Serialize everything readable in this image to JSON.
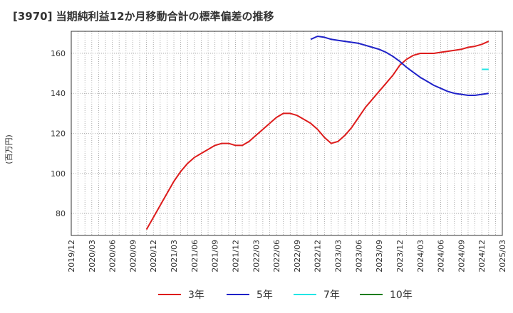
{
  "chart_data": {
    "type": "line",
    "title": "[3970]  当期純利益12か月移動合計の標準偏差の推移",
    "ylabel": "(百万円)",
    "xlabel": "",
    "ylim": [
      69,
      171
    ],
    "yticks": [
      80,
      100,
      120,
      140,
      160
    ],
    "xlim": [
      "2019/12",
      "2025/03"
    ],
    "xticks": [
      "2019/12",
      "2020/03",
      "2020/06",
      "2020/09",
      "2020/12",
      "2021/03",
      "2021/06",
      "2021/09",
      "2021/12",
      "2022/03",
      "2022/06",
      "2022/09",
      "2022/12",
      "2023/03",
      "2023/06",
      "2023/09",
      "2023/12",
      "2024/03",
      "2024/06",
      "2024/09",
      "2024/12",
      "2025/03"
    ],
    "grid": true,
    "legend_position": "bottom",
    "series": [
      {
        "name": "3年",
        "color": "#dd1c1c",
        "points": [
          [
            "2020/11",
            72
          ],
          [
            "2020/12",
            78
          ],
          [
            "2021/01",
            84
          ],
          [
            "2021/02",
            90
          ],
          [
            "2021/03",
            96
          ],
          [
            "2021/04",
            101
          ],
          [
            "2021/05",
            105
          ],
          [
            "2021/06",
            108
          ],
          [
            "2021/07",
            110
          ],
          [
            "2021/08",
            112
          ],
          [
            "2021/09",
            114
          ],
          [
            "2021/10",
            115
          ],
          [
            "2021/11",
            115
          ],
          [
            "2021/12",
            114
          ],
          [
            "2022/01",
            114
          ],
          [
            "2022/02",
            116
          ],
          [
            "2022/03",
            119
          ],
          [
            "2022/04",
            122
          ],
          [
            "2022/05",
            125
          ],
          [
            "2022/06",
            128
          ],
          [
            "2022/07",
            130
          ],
          [
            "2022/08",
            130
          ],
          [
            "2022/09",
            129
          ],
          [
            "2022/10",
            127
          ],
          [
            "2022/11",
            125
          ],
          [
            "2022/12",
            122
          ],
          [
            "2023/01",
            118
          ],
          [
            "2023/02",
            115
          ],
          [
            "2023/03",
            116
          ],
          [
            "2023/04",
            119
          ],
          [
            "2023/05",
            123
          ],
          [
            "2023/06",
            128
          ],
          [
            "2023/07",
            133
          ],
          [
            "2023/08",
            137
          ],
          [
            "2023/09",
            141
          ],
          [
            "2023/10",
            145
          ],
          [
            "2023/11",
            149
          ],
          [
            "2023/12",
            154
          ],
          [
            "2024/01",
            157
          ],
          [
            "2024/02",
            159
          ],
          [
            "2024/03",
            160
          ],
          [
            "2024/04",
            160
          ],
          [
            "2024/05",
            160
          ],
          [
            "2024/06",
            160.5
          ],
          [
            "2024/07",
            161
          ],
          [
            "2024/08",
            161.5
          ],
          [
            "2024/09",
            162
          ],
          [
            "2024/10",
            163
          ],
          [
            "2024/11",
            163.5
          ],
          [
            "2024/12",
            164.5
          ],
          [
            "2025/01",
            166
          ]
        ]
      },
      {
        "name": "5年",
        "color": "#1f22c8",
        "points": [
          [
            "2022/11",
            167
          ],
          [
            "2022/12",
            168.5
          ],
          [
            "2023/01",
            168
          ],
          [
            "2023/02",
            167
          ],
          [
            "2023/03",
            166.5
          ],
          [
            "2023/04",
            166
          ],
          [
            "2023/05",
            165.5
          ],
          [
            "2023/06",
            165
          ],
          [
            "2023/07",
            164
          ],
          [
            "2023/08",
            163
          ],
          [
            "2023/09",
            162
          ],
          [
            "2023/10",
            160.5
          ],
          [
            "2023/11",
            158.5
          ],
          [
            "2023/12",
            156
          ],
          [
            "2024/01",
            153
          ],
          [
            "2024/02",
            150.5
          ],
          [
            "2024/03",
            148
          ],
          [
            "2024/04",
            146
          ],
          [
            "2024/05",
            144
          ],
          [
            "2024/06",
            142.5
          ],
          [
            "2024/07",
            141
          ],
          [
            "2024/08",
            140
          ],
          [
            "2024/09",
            139.5
          ],
          [
            "2024/10",
            139
          ],
          [
            "2024/11",
            139
          ],
          [
            "2024/12",
            139.5
          ],
          [
            "2025/01",
            140
          ]
        ]
      },
      {
        "name": "7年",
        "color": "#22e5e5",
        "points": [
          [
            "2024/12",
            152
          ],
          [
            "2025/01",
            152
          ]
        ]
      },
      {
        "name": "10年",
        "color": "#1e7d1e",
        "points": []
      }
    ]
  }
}
